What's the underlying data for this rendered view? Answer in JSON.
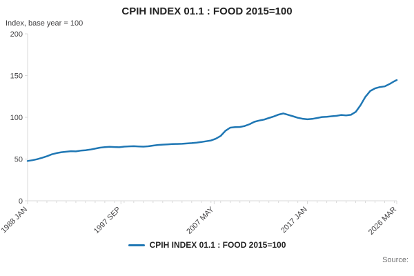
{
  "header": {
    "title": "CPIH INDEX 01.1 : FOOD 2015=100",
    "ylabel": "Index, base year = 100"
  },
  "legend": {
    "label": "CPIH INDEX 01.1 : FOOD 2015=100"
  },
  "footer": {
    "source_label": "Source:"
  },
  "colors": {
    "series": "#1f77b4",
    "axis": "#d9d9d9",
    "tick_text": "#414042",
    "title_text": "#222222"
  },
  "chart_data": {
    "type": "line",
    "title": "CPIH INDEX 01.1 : FOOD 2015=100",
    "xlabel": "",
    "ylabel": "Index, base year = 100",
    "ylim": [
      0,
      200
    ],
    "yticks": [
      0,
      50,
      100,
      150,
      200
    ],
    "x_range": [
      1988.0,
      2026.25
    ],
    "xticks": [
      {
        "pos": 1988.0,
        "label": "1988 JAN"
      },
      {
        "pos": 1997.67,
        "label": "1997 SEP"
      },
      {
        "pos": 2007.33,
        "label": "2007 MAY"
      },
      {
        "pos": 2017.0,
        "label": "2017 JAN"
      },
      {
        "pos": 2026.25,
        "label": "2026 MAR"
      }
    ],
    "grid": false,
    "legend_position": "bottom",
    "series": [
      {
        "name": "CPIH INDEX 01.1 : FOOD 2015=100",
        "x": [
          1988.0,
          1988.5,
          1989.0,
          1989.5,
          1990.0,
          1990.5,
          1991.0,
          1991.5,
          1992.0,
          1992.5,
          1993.0,
          1993.5,
          1994.0,
          1994.5,
          1995.0,
          1995.5,
          1996.0,
          1996.5,
          1997.0,
          1997.5,
          1998.0,
          1998.5,
          1999.0,
          1999.5,
          2000.0,
          2000.5,
          2001.0,
          2001.5,
          2002.0,
          2002.5,
          2003.0,
          2003.5,
          2004.0,
          2004.5,
          2005.0,
          2005.5,
          2006.0,
          2006.5,
          2007.0,
          2007.5,
          2008.0,
          2008.5,
          2009.0,
          2009.5,
          2010.0,
          2010.5,
          2011.0,
          2011.5,
          2012.0,
          2012.5,
          2013.0,
          2013.5,
          2014.0,
          2014.5,
          2015.0,
          2015.5,
          2016.0,
          2016.5,
          2017.0,
          2017.5,
          2018.0,
          2018.5,
          2019.0,
          2019.5,
          2020.0,
          2020.5,
          2021.0,
          2021.5,
          2022.0,
          2022.5,
          2023.0,
          2023.5,
          2024.0,
          2024.5,
          2025.0,
          2025.5,
          2026.0,
          2026.25
        ],
        "values": [
          47.7,
          48.6,
          49.8,
          51.5,
          53.4,
          55.6,
          57.1,
          58.2,
          58.8,
          59.4,
          59.2,
          60.1,
          60.6,
          61.3,
          62.5,
          63.6,
          64.2,
          64.6,
          64.4,
          64.1,
          64.9,
          65.2,
          65.4,
          65.1,
          64.9,
          65.3,
          66.1,
          66.9,
          67.3,
          67.6,
          67.9,
          68.1,
          68.3,
          68.7,
          69.1,
          69.7,
          70.4,
          71.3,
          72.2,
          74.3,
          77.6,
          83.8,
          87.6,
          88.2,
          88.4,
          89.6,
          91.7,
          94.6,
          96.1,
          97.3,
          99.2,
          101.0,
          103.2,
          104.6,
          103.0,
          101.2,
          99.4,
          98.3,
          97.6,
          98.1,
          99.2,
          100.3,
          100.6,
          101.2,
          101.7,
          102.8,
          102.3,
          103.0,
          106.5,
          114.5,
          124.5,
          131.5,
          134.6,
          136.2,
          137.0,
          139.8,
          143.2,
          144.6
        ]
      }
    ]
  }
}
